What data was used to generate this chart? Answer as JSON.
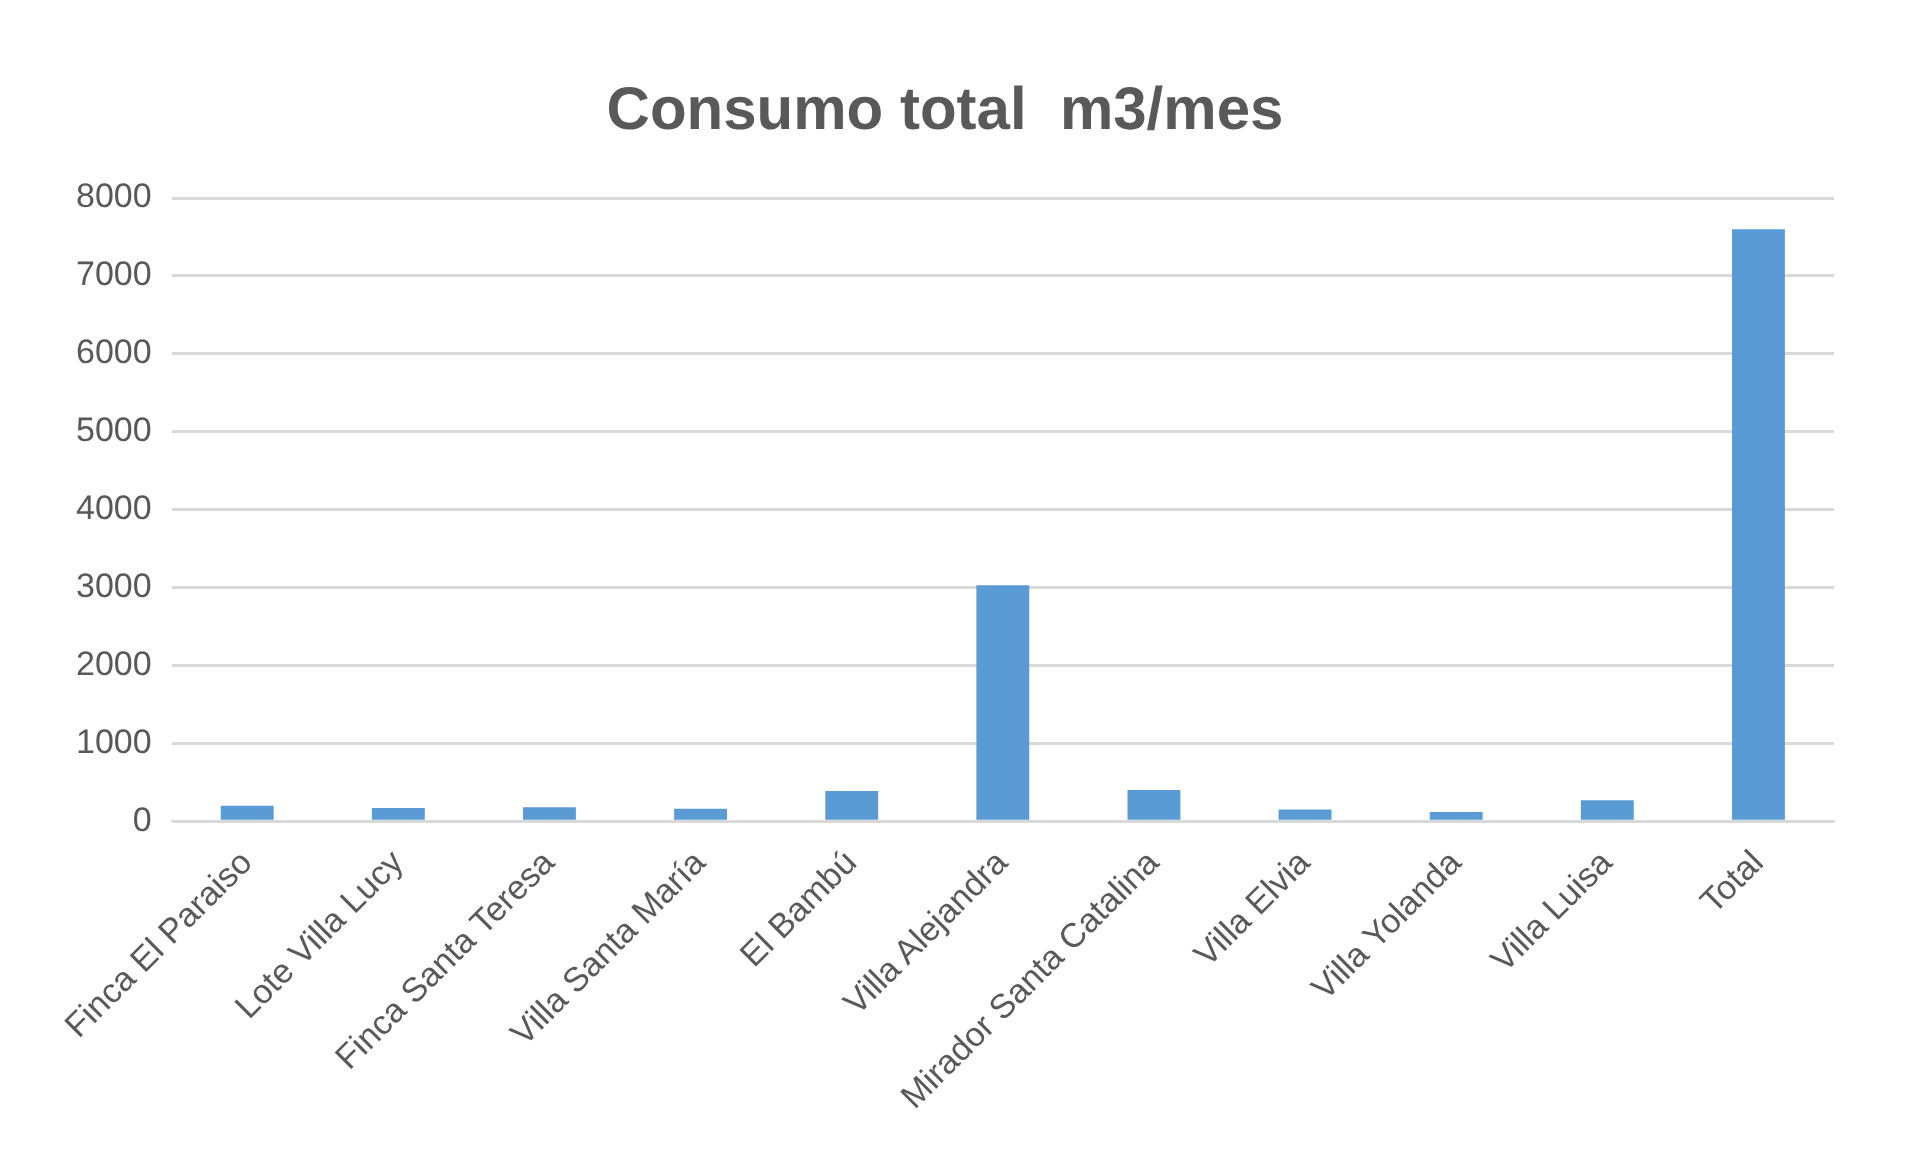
{
  "chart_data": {
    "type": "bar",
    "title": "Consumo total  m3/mes",
    "categories": [
      "Finca El Paraiso",
      "Lote Villa Lucy",
      "Finca Santa Teresa",
      "Villa Santa María",
      "El Bambú",
      "Villa Alejandra",
      "Mirador Santa Catalina",
      "Villa Elvia",
      "Villa Yolanda",
      "Villa Luisa",
      "Total"
    ],
    "values": [
      200,
      170,
      180,
      160,
      390,
      3030,
      400,
      150,
      120,
      270,
      7600
    ],
    "color": "#5b9bd5",
    "ylim": [
      0,
      8000
    ],
    "yticks": [
      0,
      1000,
      2000,
      3000,
      4000,
      5000,
      6000,
      7000,
      8000
    ],
    "grid": "y",
    "legend": false
  }
}
